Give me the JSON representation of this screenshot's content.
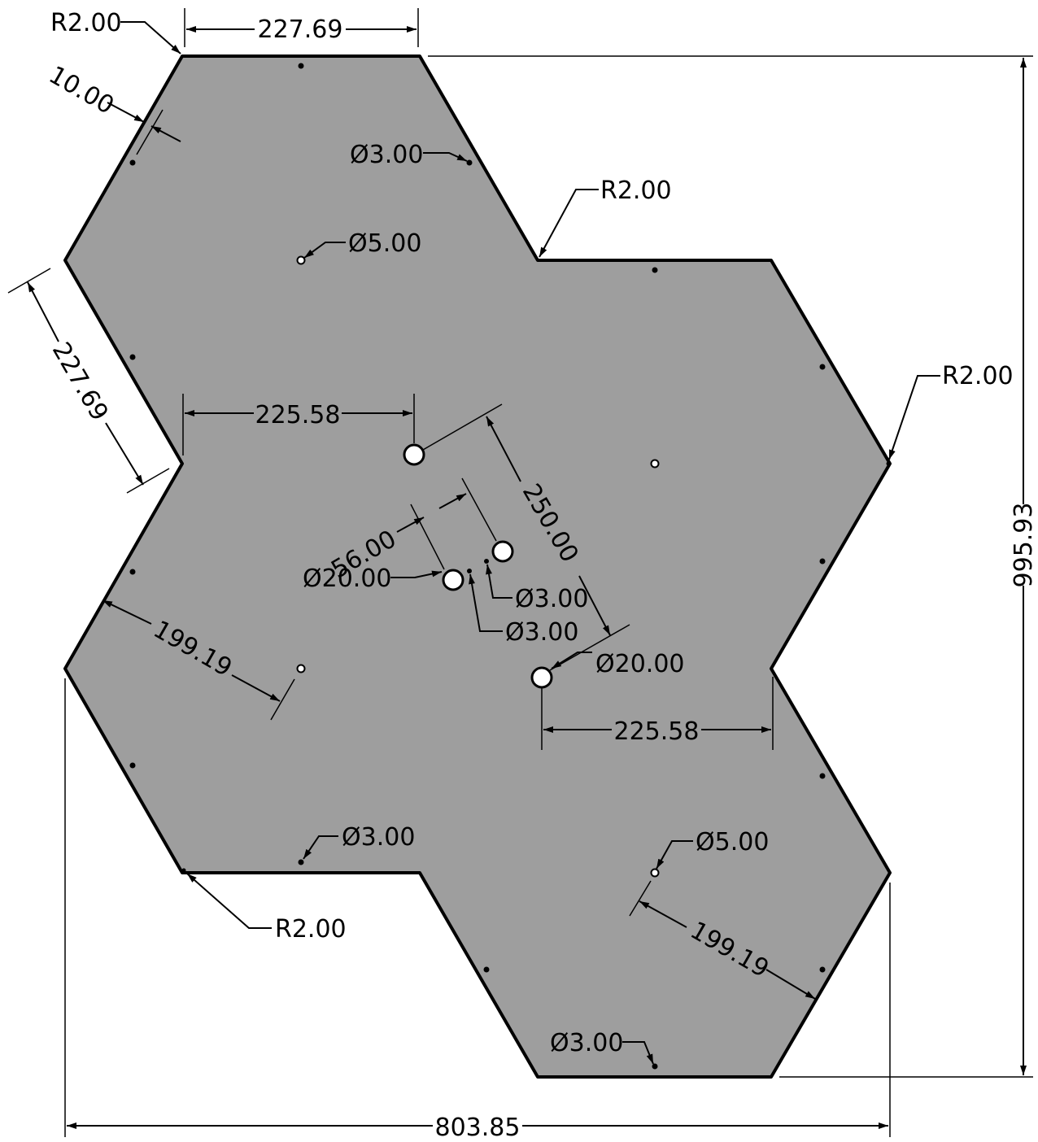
{
  "drawing": {
    "dimensions": {
      "top_width": "227.69",
      "total_height": "995.93",
      "total_width": "803.85",
      "side_length": "227.69",
      "offset_upper": "225.58",
      "offset_lower": "225.58",
      "diagonal_250": "250.00",
      "spacing_56": "56.00",
      "inset_199_left": "199.19",
      "inset_199_right": "199.19",
      "edge_10": "10.00"
    },
    "radii": {
      "r_top_left": "R2.00",
      "r_inner_top": "R2.00",
      "r_right": "R2.00",
      "r_bottom_left": "R2.00"
    },
    "diameters": {
      "d3_top": "Ø3.00",
      "d5_top": "Ø5.00",
      "d20_left": "Ø20.00",
      "d3_center_a": "Ø3.00",
      "d3_center_b": "Ø3.00",
      "d20_right": "Ø20.00",
      "d3_bottom_left": "Ø3.00",
      "d5_bottom_right": "Ø5.00",
      "d3_bottom": "Ø3.00"
    }
  }
}
